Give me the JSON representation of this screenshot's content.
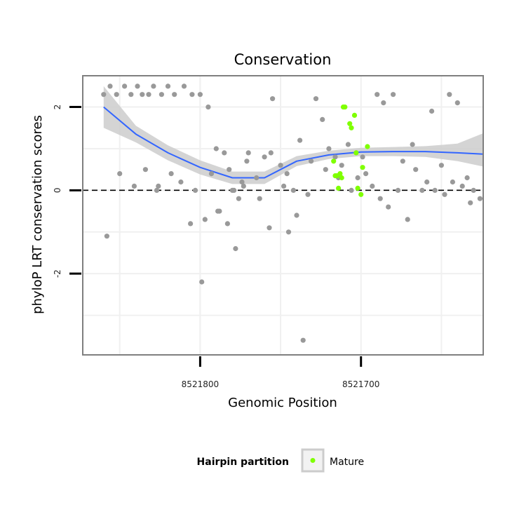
{
  "chart_data": {
    "type": "scatter",
    "title": "Conservation",
    "xlabel": "Genomic Position",
    "ylabel": "phyloP LRT conservation scores",
    "x_axis_reversed": true,
    "xlim": [
      8521873,
      8521624
    ],
    "ylim": [
      -3.95,
      2.75
    ],
    "xticks": [
      8521800,
      8521700
    ],
    "xtick_labels": [
      "8521800",
      "8521700"
    ],
    "yticks": [
      -2,
      0,
      2
    ],
    "ytick_labels": [
      "-2",
      "0",
      "2"
    ],
    "grid": true,
    "reference_line": {
      "y": 0,
      "style": "dashed"
    },
    "legend": {
      "title": "Hairpin partition",
      "position": "bottom",
      "entries": [
        "Mature"
      ]
    },
    "colors": {
      "other": "#999999",
      "mature": "#7fff00",
      "smooth": "#3366ff",
      "ribbon": "#cccccc",
      "panel_border": "#7f7f7f",
      "grid": "#f0f0f0"
    },
    "series": [
      {
        "category": "other",
        "x": [
          8521860,
          8521856,
          8521852,
          8521847,
          8521843,
          8521839,
          8521836,
          8521832,
          8521829,
          8521824,
          8521820,
          8521816,
          8521810,
          8521805,
          8521800,
          8521795,
          8521790,
          8521785,
          8521782,
          8521779,
          8521776,
          8521773,
          8521770,
          8521765,
          8521760,
          8521755,
          8521750,
          8521746,
          8521742,
          8521738,
          8521733,
          8521728,
          8521724,
          8521720,
          8521716,
          8521712,
          8521708,
          8521702,
          8521697,
          8521693,
          8521690,
          8521686,
          8521680,
          8521674,
          8521668,
          8521662,
          8521656,
          8521650,
          8521645,
          8521640,
          8521634,
          8521630,
          8521626,
          8521858,
          8521850,
          8521841,
          8521834,
          8521826,
          8521818,
          8521812,
          8521803,
          8521797,
          8521788,
          8521780,
          8521771,
          8521763,
          8521756,
          8521748,
          8521740,
          8521731,
          8521722,
          8521714,
          8521706,
          8521699,
          8521688,
          8521677,
          8521666,
          8521654,
          8521643,
          8521632,
          8521827,
          8521806,
          8521799,
          8521793,
          8521789,
          8521783,
          8521778,
          8521774,
          8521757,
          8521745,
          8521736,
          8521683,
          8521671,
          8521659,
          8521648,
          8521637
        ],
        "y": [
          2.3,
          2.5,
          2.3,
          2.5,
          2.3,
          2.5,
          2.3,
          2.3,
          2.5,
          2.3,
          2.5,
          2.3,
          2.5,
          2.3,
          2.3,
          2.0,
          1.0,
          0.9,
          0.5,
          0.0,
          -0.2,
          0.1,
          0.9,
          0.3,
          0.8,
          2.2,
          0.6,
          0.4,
          0.0,
          1.2,
          -0.1,
          2.2,
          1.7,
          1.0,
          0.8,
          0.6,
          1.1,
          0.3,
          0.4,
          0.1,
          2.3,
          2.1,
          2.3,
          0.7,
          1.1,
          0.0,
          1.9,
          0.6,
          2.3,
          2.1,
          0.3,
          0.0,
          -0.2,
          -1.1,
          0.4,
          0.1,
          0.5,
          0.1,
          0.4,
          0.2,
          0.0,
          -0.7,
          -0.5,
          0.0,
          0.7,
          -0.2,
          0.9,
          0.1,
          -0.6,
          0.7,
          0.5,
          0.3,
          0.0,
          0.8,
          -0.2,
          0.0,
          0.5,
          0.0,
          0.2,
          -0.3,
          0.0,
          -0.8,
          -2.2,
          0.4,
          -0.5,
          -0.8,
          -1.4,
          0.2,
          -0.9,
          -1.0,
          -3.6,
          -0.4,
          -0.7,
          0.2,
          -0.1,
          0.1
        ]
      },
      {
        "category": "mature",
        "x": [
          8521704,
          8521707,
          8521706,
          8521711,
          8521710,
          8521713,
          8521712,
          8521715,
          8521716,
          8521714,
          8521717,
          8521702,
          8521700,
          8521703,
          8521699,
          8521696
        ],
        "y": [
          1.8,
          1.6,
          1.5,
          2.0,
          2.0,
          0.4,
          0.3,
          0.35,
          0.35,
          0.05,
          0.7,
          0.05,
          -0.1,
          0.9,
          0.55,
          1.05
        ]
      }
    ],
    "smooth": {
      "x": [
        8521860,
        8521840,
        8521820,
        8521800,
        8521780,
        8521760,
        8521740,
        8521720,
        8521700,
        8521680,
        8521660,
        8521640,
        8521624
      ],
      "y": [
        2.0,
        1.35,
        0.9,
        0.55,
        0.3,
        0.3,
        0.7,
        0.85,
        0.92,
        0.93,
        0.93,
        0.9,
        0.87
      ],
      "lower": [
        1.5,
        1.15,
        0.72,
        0.38,
        0.15,
        0.15,
        0.58,
        0.75,
        0.82,
        0.82,
        0.8,
        0.7,
        0.57
      ],
      "upper": [
        2.5,
        1.55,
        1.08,
        0.72,
        0.45,
        0.45,
        0.82,
        0.95,
        1.02,
        1.04,
        1.06,
        1.12,
        1.37
      ]
    }
  }
}
